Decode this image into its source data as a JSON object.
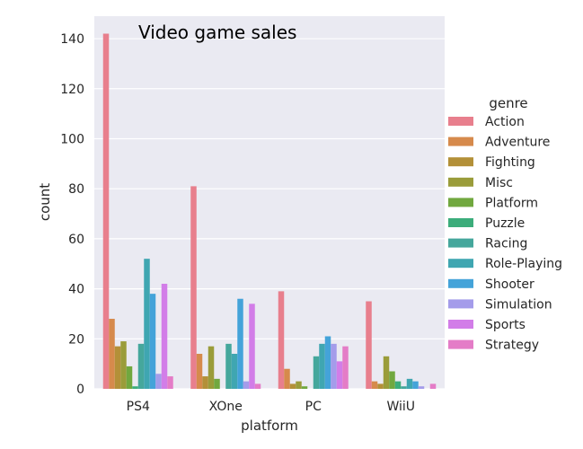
{
  "chart_data": {
    "type": "bar",
    "title": "Video game sales",
    "xlabel": "platform",
    "ylabel": "count",
    "ylim": [
      0,
      149
    ],
    "yticks": [
      0,
      20,
      40,
      60,
      80,
      100,
      120,
      140
    ],
    "grid": true,
    "legend_title": "genre",
    "legend_position": "right",
    "categories": [
      "PS4",
      "XOne",
      "PC",
      "WiiU"
    ],
    "series": [
      {
        "name": "Action",
        "color": "#e87f8d",
        "values": [
          142,
          81,
          39,
          35
        ]
      },
      {
        "name": "Adventure",
        "color": "#d68a4c",
        "values": [
          28,
          14,
          8,
          3
        ]
      },
      {
        "name": "Fighting",
        "color": "#b39038",
        "values": [
          17,
          5,
          2,
          2
        ]
      },
      {
        "name": "Misc",
        "color": "#9a9c3a",
        "values": [
          19,
          17,
          3,
          13
        ]
      },
      {
        "name": "Platform",
        "color": "#71a83f",
        "values": [
          9,
          4,
          1,
          7
        ]
      },
      {
        "name": "Puzzle",
        "color": "#3cad7b",
        "values": [
          1,
          0,
          0,
          3
        ]
      },
      {
        "name": "Racing",
        "color": "#45a79c",
        "values": [
          18,
          18,
          13,
          1
        ]
      },
      {
        "name": "Role-Playing",
        "color": "#3fa6b1",
        "values": [
          52,
          14,
          18,
          4
        ]
      },
      {
        "name": "Shooter",
        "color": "#44a3d9",
        "values": [
          38,
          36,
          21,
          3
        ]
      },
      {
        "name": "Simulation",
        "color": "#a49cea",
        "values": [
          6,
          3,
          18,
          1
        ]
      },
      {
        "name": "Sports",
        "color": "#d27de8",
        "values": [
          42,
          34,
          11,
          0
        ]
      },
      {
        "name": "Strategy",
        "color": "#e47cc7",
        "values": [
          5,
          2,
          17,
          2
        ]
      }
    ]
  }
}
